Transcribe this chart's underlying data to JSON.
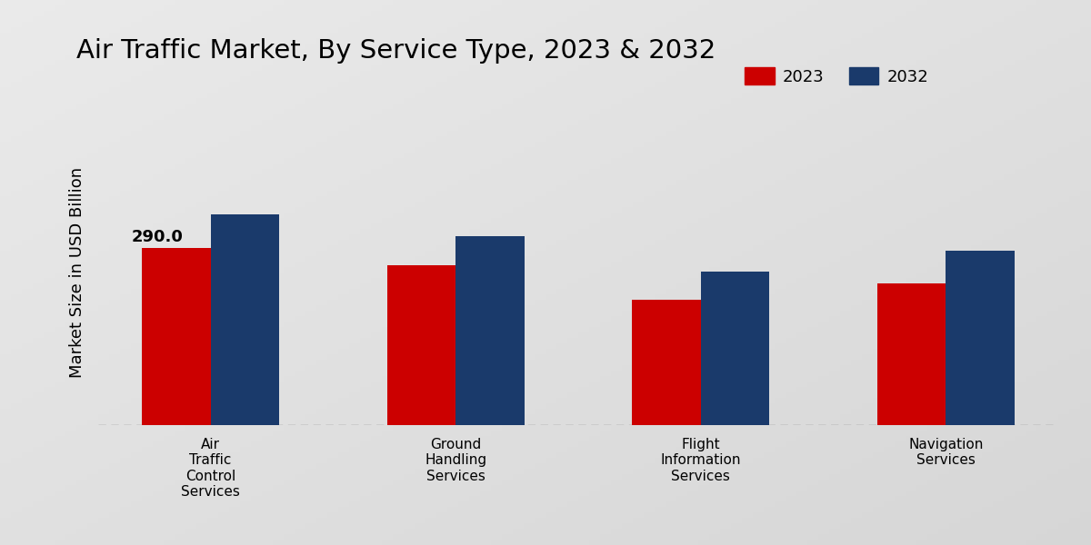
{
  "title": "Air Traffic Market, By Service Type, 2023 & 2032",
  "ylabel": "Market Size in USD Billion",
  "categories": [
    "Air\nTraffic\nControl\nServices",
    "Ground\nHandling\nServices",
    "Flight\nInformation\nServices",
    "Navigation\nServices"
  ],
  "values_2023": [
    290.0,
    262.0,
    205.0,
    232.0
  ],
  "values_2032": [
    345.0,
    310.0,
    252.0,
    285.0
  ],
  "color_2023": "#cc0000",
  "color_2032": "#1a3a6b",
  "annotation_text": "290.0",
  "annotation_bar": 0,
  "bar_width": 0.28,
  "ylim": [
    0,
    500
  ],
  "bg_light": "#e8e8e8",
  "bg_dark": "#c8c8c8",
  "legend_labels": [
    "2023",
    "2032"
  ],
  "title_fontsize": 21,
  "axis_fontsize": 13,
  "tick_fontsize": 11,
  "legend_fontsize": 13
}
